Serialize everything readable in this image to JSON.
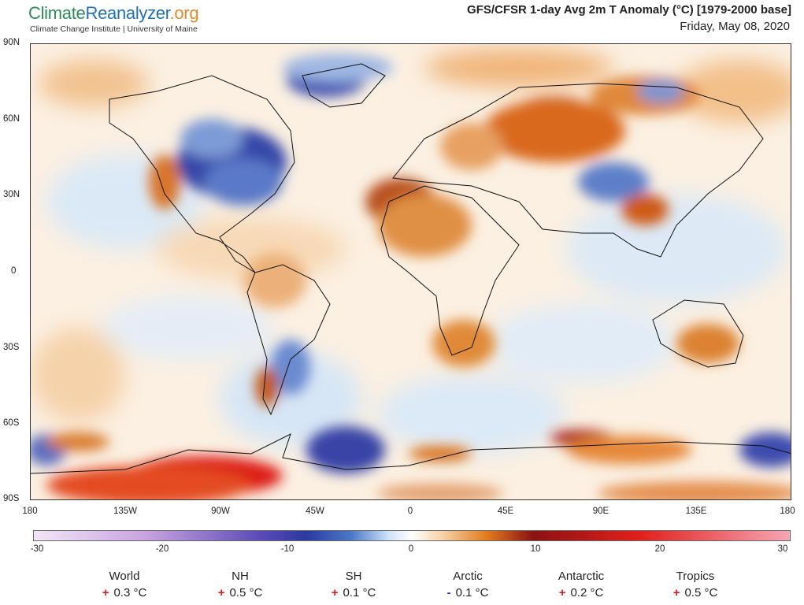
{
  "header": {
    "logo_part1": "Climate",
    "logo_part2": "Reanalyzer",
    "logo_part3": ".org",
    "tagline": "Climate Change Institute | University of Maine",
    "title": "GFS/CFSR 1-day Avg 2m T Anomaly (°C) [1979-2000 base]",
    "date": "Friday, May 08, 2020"
  },
  "map": {
    "lat_labels": [
      "90N",
      "60N",
      "30N",
      "0",
      "30S",
      "60S",
      "90S"
    ],
    "lon_labels": [
      "180",
      "135W",
      "90W",
      "45W",
      "0",
      "45E",
      "90E",
      "135E",
      "180"
    ]
  },
  "colorbar": {
    "ticks": [
      "-30",
      "-20",
      "-10",
      "0",
      "10",
      "20",
      "30"
    ],
    "colors": {
      "cold_extreme": "#f3e6f7",
      "purple": "#b48ad8",
      "dark_blue": "#2b3a9e",
      "blue": "#4a78c9",
      "light_blue": "#cfe4f7",
      "neutral": "#ffffff",
      "light_orange": "#f7d2a8",
      "orange": "#e07b1c",
      "dark_red": "#8b1212",
      "red": "#e0201c",
      "pink_extreme": "#f6a6b4"
    }
  },
  "stats": [
    {
      "name": "World",
      "sign": "+",
      "value": "0.3 °C",
      "sign_color": "#d42020"
    },
    {
      "name": "NH",
      "sign": "+",
      "value": "0.5 °C",
      "sign_color": "#d42020"
    },
    {
      "name": "SH",
      "sign": "+",
      "value": "0.1 °C",
      "sign_color": "#d42020"
    },
    {
      "name": "Arctic",
      "sign": "-",
      "value": "0.1 °C",
      "sign_color": "#2030b0"
    },
    {
      "name": "Antarctic",
      "sign": "+",
      "value": "0.2 °C",
      "sign_color": "#d42020"
    },
    {
      "name": "Tropics",
      "sign": "+",
      "value": "0.5 °C",
      "sign_color": "#d42020"
    }
  ]
}
